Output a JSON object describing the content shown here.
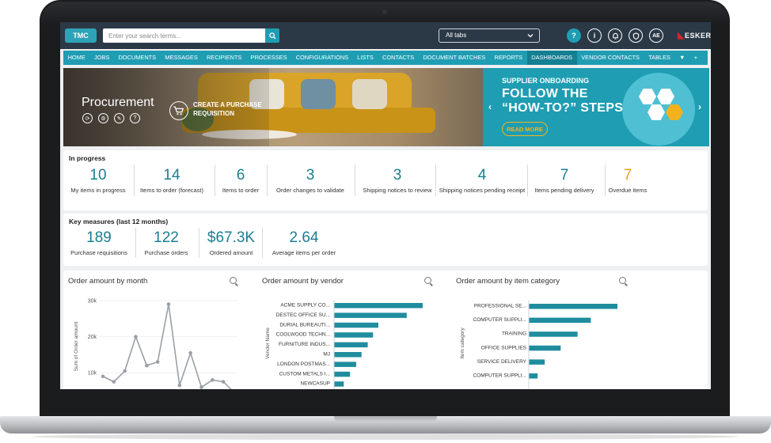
{
  "topbar": {
    "logo_text": "TMC",
    "search_placeholder": "Enter your search terms...",
    "tab_select": "All tabs",
    "help_label": "?",
    "info_label": "i",
    "avatar_initials": "AE",
    "brand": "ESKER"
  },
  "nav": {
    "items": [
      "HOME",
      "JOBS",
      "DOCUMENTS",
      "MESSAGES",
      "RECIPIENTS",
      "PROCESSES",
      "CONFIGURATIONS",
      "LISTS",
      "CONTACTS",
      "DOCUMENT BATCHES",
      "REPORTS",
      "DASHBOARDS",
      "VENDOR CONTACTS",
      "TABLES"
    ],
    "active": "DASHBOARDS",
    "more_icon": "▼",
    "add_icon": "+"
  },
  "banner": {
    "title": "Procurement",
    "action": "CREATE A PURCHASE REQUISITION",
    "promo_subtitle": "SUPPLIER ONBOARDING",
    "promo_line1": "FOLLOW THE",
    "promo_line2": "“HOW-TO?” STEPS",
    "promo_button": "READ MORE",
    "icon_help": "?"
  },
  "in_progress": {
    "title": "In progress",
    "metrics": [
      {
        "value": "10",
        "label": "My items in progress"
      },
      {
        "value": "14",
        "label": "Items to order (forecast)"
      },
      {
        "value": "6",
        "label": "Items to order"
      },
      {
        "value": "3",
        "label": "Order changes to validate"
      },
      {
        "value": "3",
        "label": "Shipping notices to review"
      },
      {
        "value": "4",
        "label": "Shipping notices pending receipt"
      },
      {
        "value": "7",
        "label": "Items pending delivery"
      },
      {
        "value": "7",
        "label": "Overdue items"
      }
    ],
    "overdue_color": "#f3a21b"
  },
  "key_measures": {
    "title": "Key measures (last 12 months)",
    "metrics": [
      {
        "value": "189",
        "label": "Purchase requisitions"
      },
      {
        "value": "122",
        "label": "Purchase orders"
      },
      {
        "value": "$67.3K",
        "label": "Ordered amount"
      },
      {
        "value": "2.64",
        "label": "Average items per order"
      }
    ]
  },
  "chart_data": [
    {
      "type": "line",
      "title": "Order amount by month",
      "ylabel": "Sum of Order amount",
      "y_ticks": [
        "30k",
        "20k",
        "10k"
      ],
      "ylim": [
        5000,
        30000
      ],
      "values": [
        9000,
        7500,
        10500,
        20000,
        12000,
        13000,
        29000,
        6500,
        15500,
        6000,
        8000,
        7500,
        4500
      ]
    },
    {
      "type": "bar",
      "title": "Order amount by vendor",
      "ylabel": "Vendor Name",
      "categories": [
        "ACME SUPPLY CO...",
        "DESTEC OFFICE SU...",
        "DURIAL BUREAUTI...",
        "COOLWOOD TECHN...",
        "FURNITURE INDUS...",
        "MJ",
        "LONDON POSTMAS...",
        "CUSTOM METALS I...",
        "NEWCASUP"
      ],
      "values": [
        100,
        82,
        50,
        44,
        38,
        31,
        25,
        18,
        11
      ]
    },
    {
      "type": "bar",
      "title": "Order amount by item category",
      "ylabel": "Item category",
      "categories": [
        "PROFESSIONAL SE...",
        "COMPUTER SUPPLI...",
        "TRAINING",
        "OFFICE SUPPLIES",
        "SERVICE DELIVERY",
        "COMPUTER SUPPLI..."
      ],
      "values": [
        100,
        70,
        55,
        36,
        18,
        10
      ]
    }
  ],
  "colors": {
    "accent": "#1f9db3",
    "bar": "#1f8d9e",
    "line": "#9aa0a6"
  }
}
